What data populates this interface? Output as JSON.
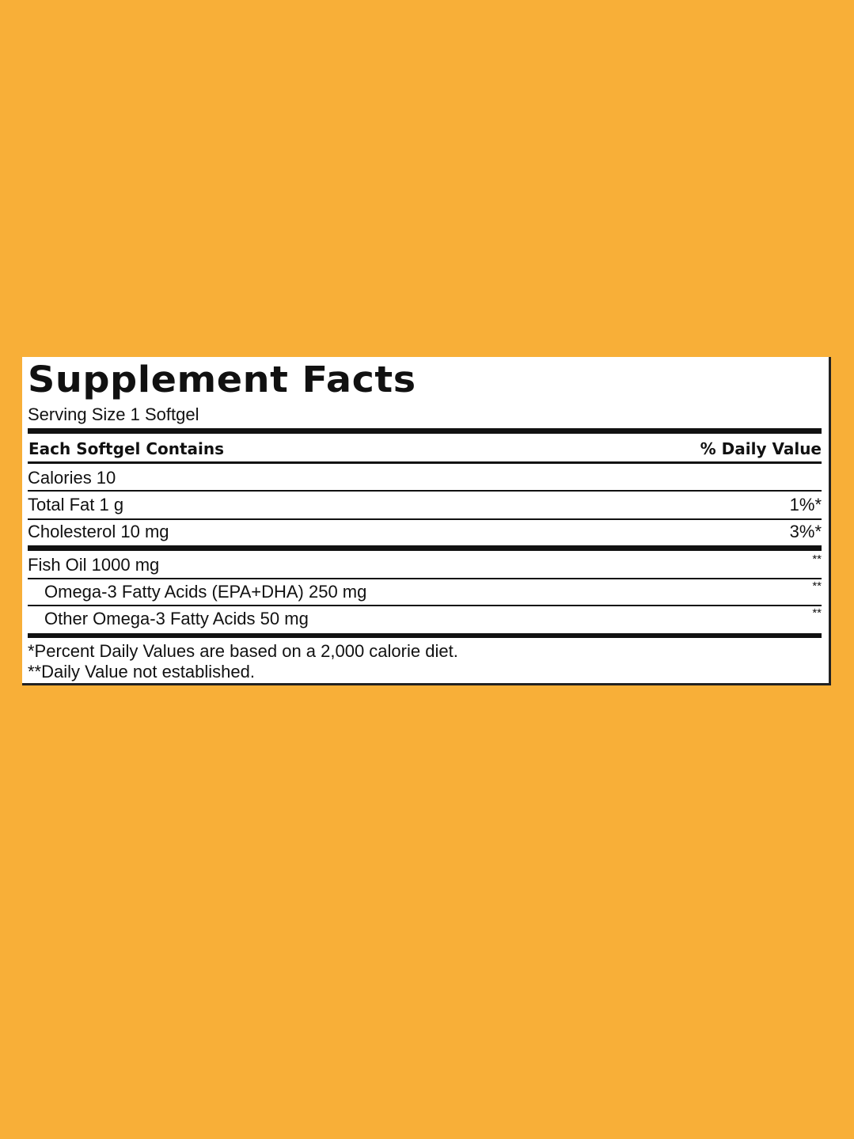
{
  "label": {
    "title": "Supplement Facts",
    "serving_size": "Serving Size 1 Softgel",
    "header": {
      "left": "Each Softgel Contains",
      "right": "% Daily Value"
    },
    "rows": [
      {
        "name": "Calories 10",
        "dv": ""
      },
      {
        "name": "Total Fat 1 g",
        "dv": "1%*"
      },
      {
        "name": "Cholesterol 10 mg",
        "dv": "3%*"
      },
      {
        "name": "Fish Oil 1000 mg",
        "dv": "**"
      },
      {
        "name": "Omega-3 Fatty Acids (EPA+DHA) 250 mg",
        "dv": "**"
      },
      {
        "name": "Other Omega-3 Fatty Acids 50 mg",
        "dv": "**"
      }
    ],
    "footnotes": [
      "*Percent Daily Values are based on a 2,000 calorie diet.",
      "**Daily Value not established."
    ]
  },
  "colors": {
    "background": "#F8AF38",
    "panel": "#FFFFFF",
    "text": "#111111"
  }
}
